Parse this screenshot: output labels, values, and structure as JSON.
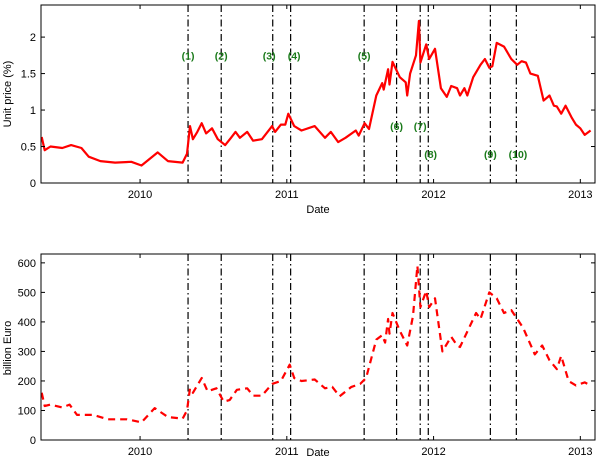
{
  "chart_data": [
    {
      "type": "line",
      "title": "",
      "xlabel": "Date",
      "ylabel": "Unit price (%)",
      "xlim": [
        2009.325,
        2013.1
      ],
      "ylim": [
        0,
        2.44
      ],
      "xticks": [
        2010,
        2011,
        2012,
        2013
      ],
      "xtick_labels": [
        "2010",
        "2011",
        "2012",
        "2013"
      ],
      "yticks": [
        0,
        0.5,
        1,
        1.5,
        2
      ],
      "ytick_labels": [
        "0",
        "0.5",
        "1",
        "1.5",
        "2"
      ],
      "grid": false,
      "series": [
        {
          "name": "Unit price",
          "color": "#ff0000",
          "style": "solid",
          "x": [
            2009.33,
            2009.35,
            2009.39,
            2009.47,
            2009.53,
            2009.6,
            2009.65,
            2009.73,
            2009.83,
            2009.94,
            2010.01,
            2010.12,
            2010.19,
            2010.29,
            2010.32,
            2010.34,
            2010.36,
            2010.39,
            2010.42,
            2010.45,
            2010.49,
            2010.53,
            2010.58,
            2010.62,
            2010.65,
            2010.68,
            2010.73,
            2010.77,
            2010.83,
            2010.9,
            2010.92,
            2010.96,
            2010.99,
            2011.01,
            2011.05,
            2011.1,
            2011.19,
            2011.26,
            2011.3,
            2011.35,
            2011.4,
            2011.47,
            2011.49,
            2011.53,
            2011.56,
            2011.61,
            2011.65,
            2011.66,
            2011.69,
            2011.7,
            2011.72,
            2011.77,
            2011.81,
            2011.82,
            2011.84,
            2011.88,
            2011.9,
            2011.91,
            2011.95,
            2011.97,
            2012.01,
            2012.05,
            2012.09,
            2012.12,
            2012.16,
            2012.18,
            2012.21,
            2012.23,
            2012.27,
            2012.32,
            2012.35,
            2012.38,
            2012.4,
            2012.43,
            2012.48,
            2012.53,
            2012.57,
            2012.6,
            2012.63,
            2012.66,
            2012.71,
            2012.75,
            2012.79,
            2012.82,
            2012.84,
            2012.87,
            2012.9,
            2012.94,
            2012.97,
            2013.0,
            2013.03,
            2013.07
          ],
          "y": [
            0.63,
            0.45,
            0.5,
            0.48,
            0.52,
            0.48,
            0.36,
            0.3,
            0.28,
            0.29,
            0.24,
            0.42,
            0.3,
            0.28,
            0.4,
            0.78,
            0.6,
            0.7,
            0.82,
            0.68,
            0.75,
            0.6,
            0.52,
            0.62,
            0.7,
            0.62,
            0.7,
            0.58,
            0.6,
            0.78,
            0.7,
            0.8,
            0.8,
            0.95,
            0.78,
            0.72,
            0.78,
            0.62,
            0.7,
            0.56,
            0.62,
            0.72,
            0.65,
            0.82,
            0.74,
            1.2,
            1.37,
            1.28,
            1.56,
            1.35,
            1.66,
            1.45,
            1.38,
            1.2,
            1.5,
            1.75,
            2.22,
            1.65,
            1.9,
            1.7,
            1.84,
            1.3,
            1.18,
            1.33,
            1.3,
            1.2,
            1.3,
            1.2,
            1.45,
            1.62,
            1.7,
            1.58,
            1.6,
            1.92,
            1.87,
            1.7,
            1.62,
            1.67,
            1.65,
            1.5,
            1.47,
            1.13,
            1.2,
            1.06,
            1.05,
            0.95,
            1.06,
            0.9,
            0.8,
            0.75,
            0.66,
            0.72
          ]
        }
      ],
      "event_lines": [
        2010.327,
        2010.553,
        2010.904,
        2011.026,
        2011.527,
        2011.748,
        2011.909,
        2011.964,
        2012.387,
        2012.564
      ],
      "annotations": [
        {
          "text": "(1)",
          "x": 2010.327,
          "y": 1.75
        },
        {
          "text": "(2)",
          "x": 2010.553,
          "y": 1.75
        },
        {
          "text": "(3)",
          "x": 2010.88,
          "y": 1.75
        },
        {
          "text": "(4)",
          "x": 2011.05,
          "y": 1.75
        },
        {
          "text": "(5)",
          "x": 2011.527,
          "y": 1.75
        },
        {
          "text": "(6)",
          "x": 2011.748,
          "y": 0.78
        },
        {
          "text": "(7)",
          "x": 2011.909,
          "y": 0.78
        },
        {
          "text": "(8)",
          "x": 2011.98,
          "y": 0.4
        },
        {
          "text": "(9)",
          "x": 2012.387,
          "y": 0.4
        },
        {
          "text": "(10)",
          "x": 2012.575,
          "y": 0.4
        }
      ]
    },
    {
      "type": "line",
      "title": "",
      "xlabel": "Date",
      "ylabel": "billion Euro",
      "xlim": [
        2009.325,
        2013.1
      ],
      "ylim": [
        0,
        630
      ],
      "xticks": [
        2010,
        2011,
        2012,
        2013
      ],
      "xtick_labels": [
        "2010",
        "2011",
        "2012",
        "2013"
      ],
      "yticks": [
        0,
        100,
        200,
        300,
        400,
        500,
        600
      ],
      "ytick_labels": [
        "0",
        "100",
        "200",
        "300",
        "400",
        "500",
        "600"
      ],
      "grid": false,
      "series": [
        {
          "name": "billion Euro",
          "color": "#ff0000",
          "style": "dashed",
          "x": [
            2009.33,
            2009.35,
            2009.39,
            2009.47,
            2009.52,
            2009.57,
            2009.68,
            2009.78,
            2009.91,
            2010.01,
            2010.1,
            2010.19,
            2010.29,
            2010.32,
            2010.34,
            2010.36,
            2010.42,
            2010.46,
            2010.52,
            2010.57,
            2010.61,
            2010.66,
            2010.73,
            2010.77,
            2010.83,
            2010.9,
            2010.96,
            2011.02,
            2011.05,
            2011.1,
            2011.19,
            2011.26,
            2011.31,
            2011.36,
            2011.44,
            2011.5,
            2011.54,
            2011.61,
            2011.65,
            2011.67,
            2011.69,
            2011.7,
            2011.72,
            2011.77,
            2011.82,
            2011.86,
            2011.89,
            2011.91,
            2011.95,
            2011.97,
            2012.01,
            2012.06,
            2012.12,
            2012.16,
            2012.18,
            2012.29,
            2012.32,
            2012.38,
            2012.43,
            2012.48,
            2012.53,
            2012.61,
            2012.69,
            2012.74,
            2012.79,
            2012.84,
            2012.87,
            2012.92,
            2012.97,
            2013.03,
            2013.07
          ],
          "y": [
            160,
            115,
            120,
            110,
            120,
            85,
            85,
            70,
            70,
            60,
            108,
            78,
            72,
            100,
            175,
            160,
            210,
            165,
            175,
            130,
            135,
            170,
            175,
            150,
            150,
            190,
            200,
            255,
            210,
            200,
            205,
            175,
            180,
            148,
            180,
            190,
            210,
            340,
            355,
            330,
            410,
            360,
            430,
            370,
            320,
            420,
            590,
            450,
            505,
            450,
            480,
            300,
            350,
            320,
            315,
            430,
            410,
            500,
            480,
            430,
            440,
            380,
            290,
            320,
            270,
            240,
            285,
            200,
            185,
            195,
            185
          ]
        }
      ],
      "event_lines": [
        2010.327,
        2010.553,
        2010.904,
        2011.026,
        2011.527,
        2011.748,
        2011.909,
        2011.964,
        2012.387,
        2012.564
      ]
    }
  ]
}
